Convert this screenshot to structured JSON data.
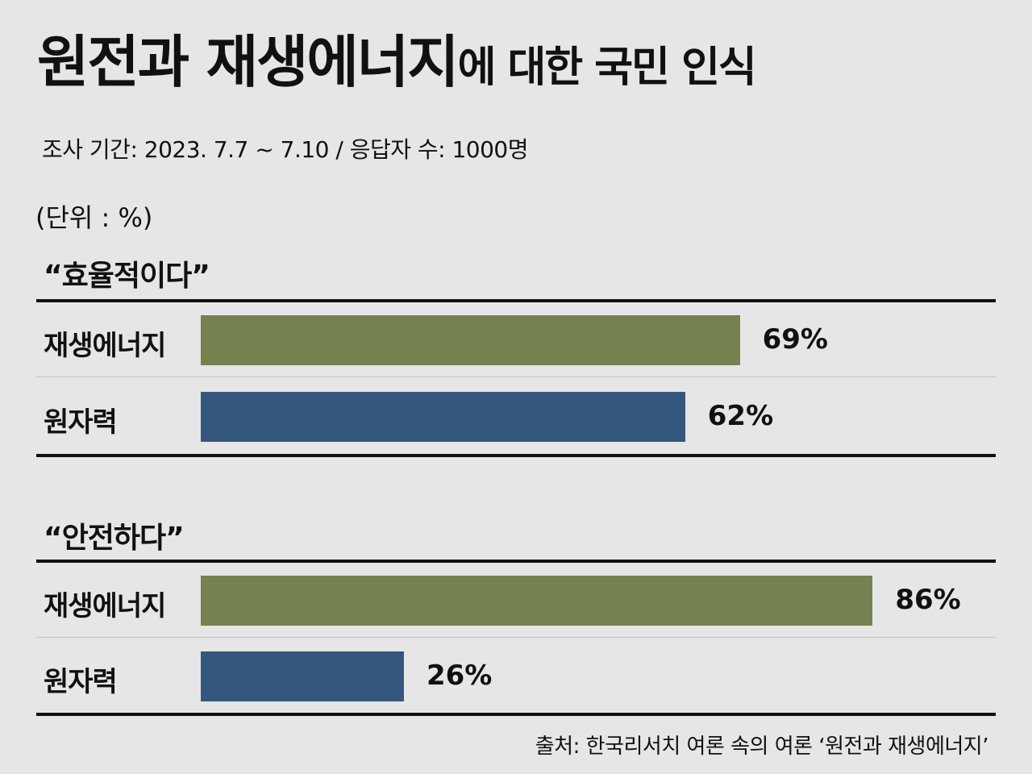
{
  "title": {
    "main": "원전과 재생에너지",
    "rest": "에 대한 국민 인식"
  },
  "subtitle": "조사 기간: 2023. 7.7 ~ 7.10 / 응답자 수: 1000명",
  "unit_label": "(단위 : %)",
  "source": "출처: 한국리서치 여론 속의 여론 ‘원전과 재생에너지’",
  "colors": {
    "renewable": "#768150",
    "nuclear": "#36577d"
  },
  "chart_data": [
    {
      "type": "bar",
      "title": "“효율적이다”",
      "categories": [
        "재생에너지",
        "원자력"
      ],
      "values": [
        69,
        62
      ],
      "value_labels": [
        "69%",
        "62%"
      ],
      "xlim": [
        0,
        100
      ]
    },
    {
      "type": "bar",
      "title": "“안전하다”",
      "categories": [
        "재생에너지",
        "원자력"
      ],
      "values": [
        86,
        26
      ],
      "value_labels": [
        "86%",
        "26%"
      ],
      "xlim": [
        0,
        100
      ]
    }
  ]
}
